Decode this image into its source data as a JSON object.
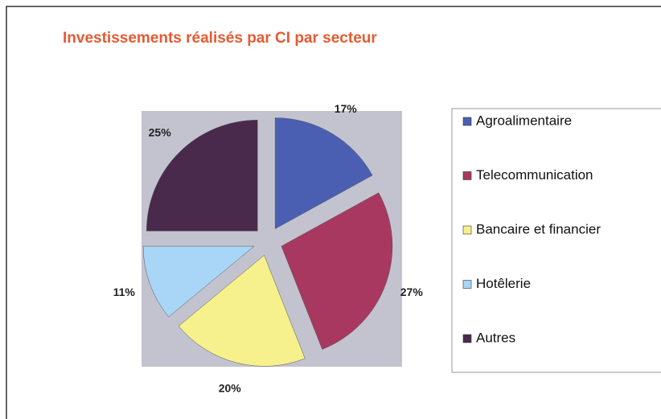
{
  "chart_data": {
    "type": "pie",
    "title": "Investissements  réalisés par CI par secteur",
    "categories": [
      "Agroalimentaire",
      "Telecommunication",
      "Bancaire et financier",
      "Hotêlerie",
      "Autres"
    ],
    "values": [
      17,
      27,
      20,
      11,
      25
    ],
    "value_labels": [
      "17%",
      "27%",
      "20%",
      "11%",
      "25%"
    ],
    "colors": [
      "#4b5fb2",
      "#a8385f",
      "#f6f18c",
      "#a9d6f6",
      "#4a2a4c"
    ],
    "legend": "right"
  }
}
